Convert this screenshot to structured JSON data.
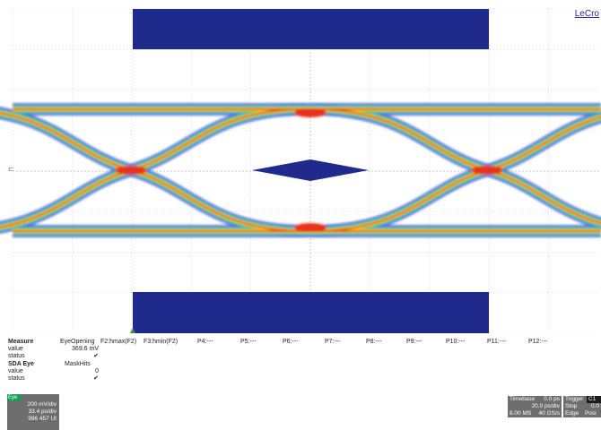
{
  "brand": "LeCro",
  "measure": {
    "header": {
      "title": "Measure",
      "p1": "EyeOpening",
      "p2": "F2:hmax(F2)",
      "p3": "F3:hmin(F2)",
      "p4": "P4:---",
      "p5": "P5:---",
      "p6": "P6:---",
      "p7": "P7:---",
      "p8": "P8:---",
      "p9": "P9:---",
      "p10": "P10:---",
      "p11": "P11:---",
      "p12": "P12:---"
    },
    "value_label": "value",
    "value": "369.6 mV",
    "status_label": "status",
    "status_mark": "✔",
    "sda_label": "SDA Eye",
    "mask_label": "MaskHits",
    "value2_label": "value",
    "value2": "0",
    "status2_label": "status",
    "status2_mark": "✔"
  },
  "trace": {
    "tag": "Eye",
    "l1": "200 mV/div",
    "l2": "33.4 ps/div",
    "l3": "996 457 UI"
  },
  "timebase": {
    "label": "Timebase",
    "offset": "0.0 ps",
    "per_div": "20.0 ps/div",
    "memory": "8.00 MS",
    "rate": "40 GS/s",
    "trigger_label": "Trigger",
    "trigger_tag": "C1",
    "mode": "Stop",
    "mode_val": "0.0",
    "type": "Edge",
    "slope": "Posi"
  }
}
